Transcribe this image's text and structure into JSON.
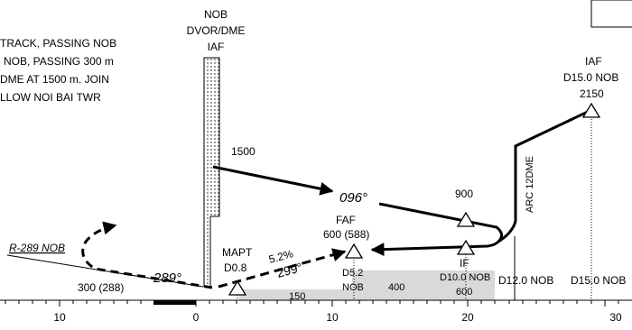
{
  "notes": {
    "lines": [
      "TRACK, PASSING NOB",
      "NOB, PASSING 300 m",
      "DME AT 1500 m. JOIN",
      "LLOW NOI BAI TWR"
    ]
  },
  "navaid": {
    "lines": [
      "NOB",
      "DVOR/DME",
      "IAF"
    ]
  },
  "altitudes": {
    "initial": "1500",
    "intermediate": "900",
    "missed": "300 (288)"
  },
  "courses": {
    "inbound": "096°",
    "missed": "289°",
    "final": "299°",
    "gradient": "5.2%"
  },
  "radial": "R-289 NOB",
  "arc": "ARC 12DME",
  "fixes": {
    "iaf": {
      "name": "IAF",
      "distance": "D15.0 NOB",
      "altitude": "2150"
    },
    "faf": {
      "name": "FAF",
      "altitude": "600 (588)"
    },
    "mapt": {
      "name": "MAPT",
      "distance": "D0.8"
    },
    "stepdown": {
      "distance": "D5.2",
      "navaid": "NOB"
    },
    "if": {
      "name": "IF",
      "distance": "D10.0 NOB",
      "altitude": "600"
    },
    "d12": "D12.0 NOB",
    "d15": "D15.0 NOB"
  },
  "minimums": {
    "segment1": "150",
    "segment2": "400"
  },
  "axis": {
    "ticks": [
      "10",
      "0",
      "10",
      "20",
      "30"
    ]
  }
}
